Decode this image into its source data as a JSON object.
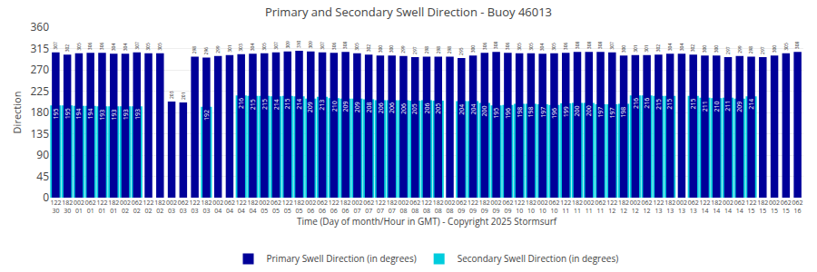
{
  "chart_data": {
    "type": "bar",
    "title": "Primary and Secondary Swell Direction - Buoy 46013",
    "xlabel": "Time (Day of month/Hour in GMT) - Copyright 2025 Stormsurf",
    "ylabel": "Direction",
    "categories": [
      [
        "122",
        "30"
      ],
      [
        "182",
        "30"
      ],
      [
        "002",
        "01"
      ],
      [
        "062",
        "01"
      ],
      [
        "122",
        "01"
      ],
      [
        "182",
        "01"
      ],
      [
        "002",
        "02"
      ],
      [
        "062",
        "02"
      ],
      [
        "122",
        "02"
      ],
      [
        "182",
        "02"
      ],
      [
        "002",
        "03"
      ],
      [
        "062",
        "03"
      ],
      [
        "122",
        "03"
      ],
      [
        "182",
        "03"
      ],
      [
        "002",
        "04"
      ],
      [
        "062",
        "04"
      ],
      [
        "122",
        "04"
      ],
      [
        "182",
        "04"
      ],
      [
        "002",
        "05"
      ],
      [
        "062",
        "05"
      ],
      [
        "122",
        "05"
      ],
      [
        "182",
        "05"
      ],
      [
        "002",
        "06"
      ],
      [
        "062",
        "06"
      ],
      [
        "122",
        "06"
      ],
      [
        "182",
        "06"
      ],
      [
        "002",
        "07"
      ],
      [
        "062",
        "07"
      ],
      [
        "122",
        "07"
      ],
      [
        "182",
        "07"
      ],
      [
        "002",
        "08"
      ],
      [
        "062",
        "08"
      ],
      [
        "122",
        "08"
      ],
      [
        "182",
        "08"
      ],
      [
        "002",
        "08"
      ],
      [
        "062",
        "09"
      ],
      [
        "122",
        "09"
      ],
      [
        "182",
        "09"
      ],
      [
        "002",
        "09"
      ],
      [
        "062",
        "09"
      ],
      [
        "122",
        "10"
      ],
      [
        "182",
        "10"
      ],
      [
        "002",
        "10"
      ],
      [
        "062",
        "10"
      ],
      [
        "122",
        "11"
      ],
      [
        "182",
        "11"
      ],
      [
        "002",
        "11"
      ],
      [
        "062",
        "11"
      ],
      [
        "122",
        "12"
      ],
      [
        "182",
        "12"
      ],
      [
        "002",
        "12"
      ],
      [
        "062",
        "12"
      ],
      [
        "122",
        "13"
      ],
      [
        "182",
        "13"
      ],
      [
        "002",
        "13"
      ],
      [
        "062",
        "13"
      ],
      [
        "122",
        "14"
      ],
      [
        "182",
        "14"
      ],
      [
        "002",
        "14"
      ],
      [
        "062",
        "14"
      ],
      [
        "122",
        "15"
      ],
      [
        "182",
        "15"
      ],
      [
        "002",
        "15"
      ],
      [
        "062",
        "15"
      ],
      [
        "062",
        "16"
      ]
    ],
    "series": [
      {
        "name": "Primary Swell Direction (in degrees)",
        "color": "#000099",
        "values": [
          307,
          302,
          305,
          306,
          306,
          304,
          304,
          307,
          305,
          305,
          203,
          201,
          298,
          296,
          299,
          301,
          303,
          304,
          305,
          307,
          309,
          310,
          309,
          307,
          306,
          308,
          305,
          302,
          300,
          300,
          299,
          297,
          298,
          298,
          298,
          295,
          300,
          306,
          308,
          306,
          305,
          305,
          304,
          305,
          306,
          308,
          308,
          308,
          307,
          300,
          301,
          301,
          302,
          304,
          304,
          302,
          300,
          300,
          297,
          299,
          298,
          297,
          300,
          305,
          308
        ]
      },
      {
        "name": "Secondary Swell Direction (in degrees)",
        "color": "#00CCDD",
        "values": [
          195,
          195,
          194,
          194,
          193,
          193,
          193,
          193,
          null,
          null,
          null,
          null,
          null,
          192,
          null,
          null,
          216,
          215,
          215,
          214,
          215,
          214,
          209,
          213,
          210,
          209,
          209,
          208,
          206,
          206,
          206,
          205,
          206,
          205,
          null,
          204,
          204,
          200,
          195,
          196,
          198,
          198,
          197,
          196,
          199,
          200,
          200,
          197,
          197,
          198,
          216,
          216,
          215,
          215,
          null,
          215,
          211,
          210,
          211,
          209,
          214,
          null,
          null,
          null,
          null
        ]
      }
    ],
    "ylim": [
      0,
      360
    ],
    "yticks": [
      0,
      45,
      90,
      135,
      180,
      225,
      270,
      315,
      360
    ],
    "grid": true,
    "legend": "bottom",
    "data_labels": true
  }
}
